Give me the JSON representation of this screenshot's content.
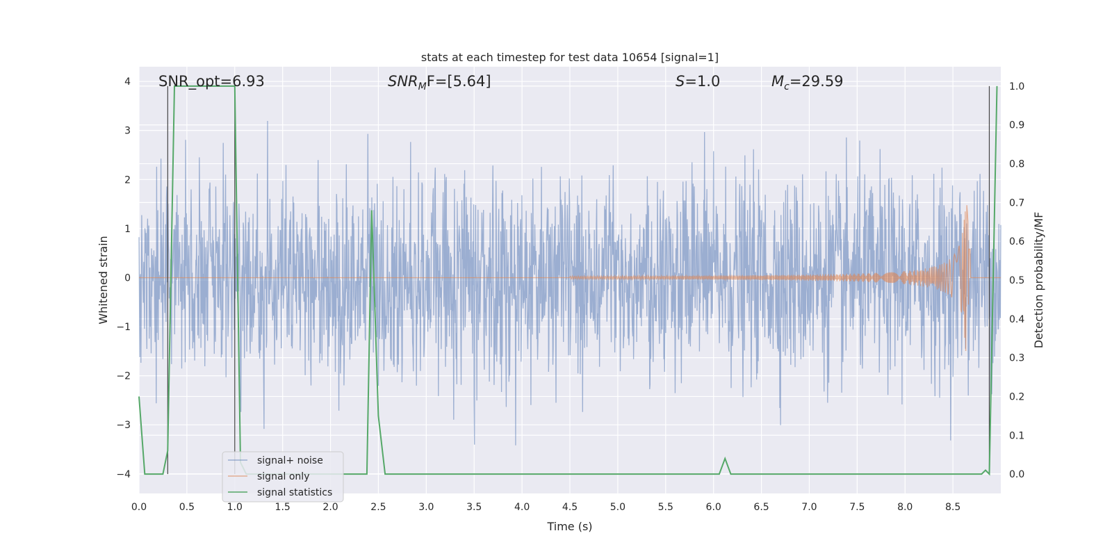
{
  "chart_data": {
    "type": "line",
    "title": "stats at each timestep for test data 10654 [signal=1]",
    "xlabel": "Time (s)",
    "ylabel": "Whitened strain",
    "ylabel_right": "Detection probability/MF",
    "xlim": [
      0.0,
      9.0
    ],
    "ylim": [
      -4.4,
      4.3
    ],
    "ylim_right": [
      -0.05,
      1.05
    ],
    "x_ticks": [
      "0.0",
      "0.5",
      "1.0",
      "1.5",
      "2.0",
      "2.5",
      "3.0",
      "3.5",
      "4.0",
      "4.5",
      "5.0",
      "5.5",
      "6.0",
      "6.5",
      "7.0",
      "7.5",
      "8.0",
      "8.5"
    ],
    "y_ticks": [
      "4",
      "3",
      "2",
      "1",
      "0",
      "−1",
      "−2",
      "−3",
      "−4"
    ],
    "y_right_ticks": [
      "1.0",
      "0.9",
      "0.8",
      "0.7",
      "0.6",
      "0.5",
      "0.4",
      "0.3",
      "0.2",
      "0.1",
      "0.0"
    ],
    "grid": true,
    "legend_placement": "lower-left",
    "annotations": {
      "snr_opt": "SNR_opt=6.93",
      "snr_mf_main": "SNR",
      "snr_mf_sub": "M",
      "snr_mf_rest": "F=[5.64]",
      "s_main": "S",
      "s_rest": "=1.0",
      "mc_main": "M",
      "mc_sub": "c",
      "mc_rest": "=29.59"
    },
    "vertical_markers_x": [
      0.3,
      1.0,
      8.88
    ],
    "series": [
      {
        "name": "signal+ noise",
        "color": "#4c72b0",
        "description_values": "whitened noise, amplitude mostly within ±2, peaks to ±3.5",
        "noise_std": 1.0
      },
      {
        "name": "signal only",
        "color": "#dd8452",
        "chirp": {
          "start_x": 4.5,
          "peak_x": 8.65,
          "peak_amplitude": 1.5
        }
      },
      {
        "name": "signal statistics",
        "color": "#55a868",
        "x": [
          0.0,
          0.06,
          0.25,
          0.3,
          0.37,
          1.0,
          1.06,
          1.12,
          1.5,
          2.0,
          2.38,
          2.43,
          2.5,
          2.57,
          3.0,
          4.0,
          5.0,
          6.0,
          6.06,
          6.12,
          6.18,
          7.0,
          8.0,
          8.8,
          8.84,
          8.88,
          8.92,
          8.96
        ],
        "y": [
          0.2,
          0.0,
          0.0,
          0.06,
          1.0,
          1.0,
          0.03,
          0.0,
          0.0,
          0.0,
          0.0,
          0.68,
          0.15,
          0.0,
          0.0,
          0.0,
          0.0,
          0.0,
          0.0,
          0.04,
          0.0,
          0.0,
          0.0,
          0.0,
          0.01,
          0.0,
          0.5,
          1.0
        ]
      }
    ]
  }
}
